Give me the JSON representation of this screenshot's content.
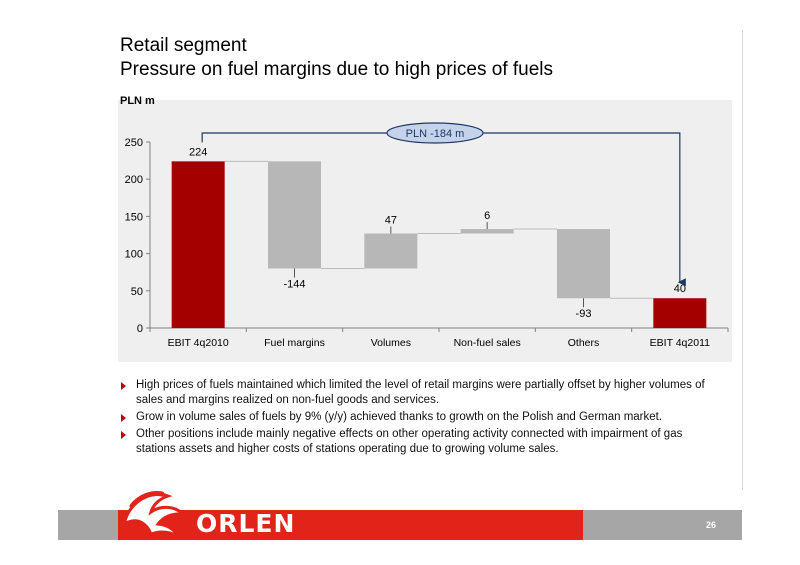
{
  "slide": {
    "title_line1": "Retail segment",
    "title_line2": "Pressure on fuel margins due to high prices of fuels",
    "unit_label": "PLN m",
    "page_number": "26",
    "logo_text": "ORLEN"
  },
  "bullets": [
    "High prices of fuels maintained which limited the level of retail margins were partially offset by higher volumes of sales and margins realized on non-fuel goods and services.",
    "Grow in volume sales of fuels by 9% (y/y) achieved thanks to growth on the Polish and German market.",
    "Other positions include mainly negative effects on other operating activity connected with impairment of gas stations assets and higher costs of stations operating due to growing volume sales."
  ],
  "colors": {
    "total_bar": "#a50000",
    "delta_bar": "#b7b7b7",
    "plot_background": "#efefef",
    "callout_fill": "#c5d3ea",
    "callout_border": "#1f3864",
    "footer_red": "#e2231a",
    "footer_gray": "#a6a6a6"
  },
  "chart_data": {
    "type": "bar",
    "subtype": "waterfall",
    "title": "",
    "xlabel": "",
    "ylabel": "PLN m",
    "ylim": [
      0,
      250
    ],
    "yticks": [
      0,
      50,
      100,
      150,
      200,
      250
    ],
    "grid": false,
    "categories": [
      "EBIT 4q2010",
      "Fuel margins",
      "Volumes",
      "Non-fuel sales",
      "Others",
      "EBIT 4q2011"
    ],
    "values": [
      224,
      -144,
      47,
      6,
      -93,
      40
    ],
    "value_labels": [
      "224",
      "-144",
      "47",
      "6",
      "-93",
      "40"
    ],
    "kinds": [
      "total",
      "delta",
      "delta",
      "delta",
      "delta",
      "total"
    ],
    "callout": "PLN -184 m"
  }
}
